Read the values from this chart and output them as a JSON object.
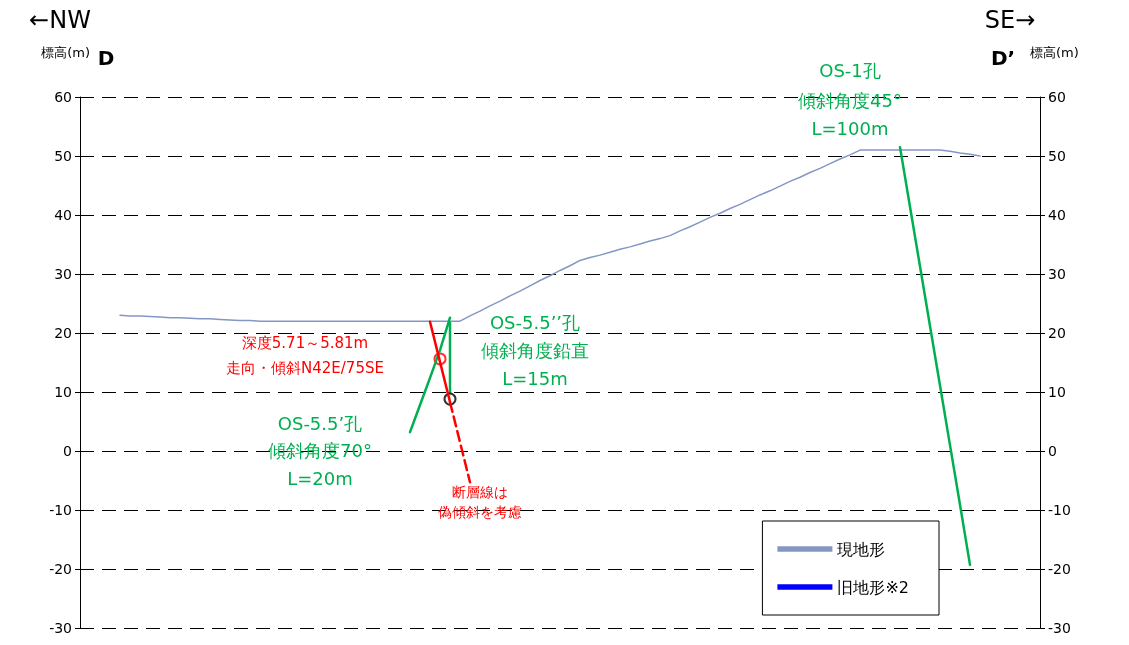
{
  "chart_data": {
    "type": "line",
    "ylabel": "標高(m)",
    "y2label": "標高(m)",
    "annotations": [
      "←NW",
      "D",
      "SE→",
      "D’",
      "OS-1孔",
      "傾斜角度45°",
      "L=100m",
      "OS-5.5’’孔",
      "傾斜角度鉛直",
      "L=15m",
      "OS-5.5’孔",
      "傾斜角度70°",
      "L=20m",
      "深度5.71～5.81m",
      "走向・傾斜N42E/75SE",
      "断層線は",
      "偽傾斜を考慮"
    ],
    "categories": [
      null,
      null,
      null,
      null,
      null,
      null,
      null,
      null,
      null,
      null,
      null,
      null,
      null,
      null,
      null,
      null,
      null,
      null,
      null,
      null,
      null,
      null,
      null,
      null,
      null,
      null,
      null,
      null,
      null,
      null,
      null,
      null,
      null,
      null,
      null,
      null,
      null,
      null,
      null,
      null,
      null,
      null,
      null,
      null,
      null,
      null,
      null,
      null,
      null,
      null,
      null,
      null,
      null,
      null,
      null,
      null,
      null,
      null,
      null,
      null,
      null,
      null,
      null,
      null,
      null,
      null,
      null,
      null,
      null,
      null,
      null,
      null,
      null,
      null,
      null,
      null,
      null,
      null,
      null,
      null,
      null,
      null,
      null,
      null,
      null,
      null,
      null,
      null,
      null,
      null,
      null,
      null,
      null,
      null,
      null,
      null,
      null
    ],
    "ylim": [
      -30,
      60
    ],
    "yticks": [
      -30,
      -20,
      -10,
      0,
      10,
      20,
      30,
      40,
      50,
      60
    ],
    "y2lim": [
      -30,
      60
    ],
    "y2ticks": [
      -30,
      -20,
      -10,
      0,
      10,
      20,
      30,
      40,
      50,
      60
    ],
    "tick_labels": "y",
    "grid": "y",
    "legend": "bottom right",
    "marker": "none",
    "series": [
      {
        "name": "現地形",
        "color": "#8497c4",
        "values": [
          null,
          null,
          null,
          null,
          23,
          22.9,
          22.9,
          22.8,
          22.7,
          22.6,
          22.6,
          22.5,
          22.4,
          22.4,
          22.3,
          22.2,
          22.1,
          22.1,
          22,
          22,
          22,
          22,
          22,
          22,
          22,
          22,
          22,
          22,
          22,
          22,
          22,
          22,
          22,
          22,
          22,
          22,
          22,
          22,
          22,
          22.9,
          23.7,
          24.6,
          25.4,
          26.3,
          27.1,
          28.0,
          28.9,
          29.7,
          30.6,
          31.4,
          32.3,
          32.8,
          33.2,
          33.7,
          34.2,
          34.6,
          35.1,
          35.6,
          36.0,
          36.5,
          37.3,
          38.0,
          38.8,
          39.6,
          40.3,
          41.1,
          41.8,
          42.6,
          43.4,
          44.1,
          44.9,
          45.7,
          46.4,
          47.2,
          47.9,
          48.7,
          49.5,
          50.2,
          51,
          51,
          51,
          51,
          51,
          51,
          51,
          51,
          51,
          50.8,
          50.5,
          50.3,
          50,
          null,
          null,
          null,
          null,
          null,
          null
        ]
      },
      {
        "name": "旧地形※2",
        "color": "#0000ff",
        "values": [
          null,
          null,
          null,
          null,
          null,
          null,
          null,
          null,
          null,
          null,
          null,
          null,
          null,
          null,
          null,
          null,
          null,
          null,
          null,
          null,
          null,
          null,
          null,
          null,
          null,
          null,
          null,
          null,
          null,
          null,
          null,
          null,
          null,
          null,
          null,
          null,
          null,
          null,
          null,
          null,
          null,
          null,
          null,
          null,
          null,
          null,
          null,
          null,
          null,
          null,
          null,
          null,
          null,
          null,
          null,
          null,
          null,
          null,
          null,
          null,
          null,
          null,
          null,
          null,
          null,
          null,
          null,
          null,
          null,
          null,
          null,
          null,
          null,
          null,
          null,
          null,
          null,
          null,
          null,
          null,
          null,
          null,
          null,
          null,
          null,
          null,
          null,
          null,
          null,
          null,
          null,
          null,
          null,
          null,
          null,
          null,
          null
        ]
      },
      {
        "color": "#00b050",
        "values": [
          null,
          null,
          null,
          null,
          null,
          null,
          null,
          null,
          null,
          null,
          null,
          null,
          null,
          null,
          null,
          null,
          null,
          null,
          null,
          null,
          null,
          null,
          null,
          null,
          null,
          null,
          null,
          null,
          null,
          null,
          null,
          null,
          null,
          null,
          null,
          null,
          null,
          null,
          null,
          null,
          null,
          null,
          null,
          null,
          null,
          null,
          null,
          null,
          null,
          null,
          null,
          null,
          null,
          null,
          null,
          null,
          null,
          null,
          null,
          null,
          null,
          null,
          null,
          null,
          null,
          null,
          null,
          null,
          null,
          null,
          null,
          null,
          null,
          null,
          null,
          null,
          null,
          null,
          null,
          null,
          null,
          null,
          51.5,
          41.4,
          31.3,
          21.2,
          11.1,
          1.0,
          -9.1,
          -19.3,
          null,
          null,
          null,
          null,
          null,
          null,
          null
        ]
      },
      {
        "type": "bar",
        "color": "#00b050",
        "values": [
          null,
          null,
          null,
          null,
          null,
          null,
          null,
          null,
          null,
          null,
          null,
          null,
          null,
          null,
          null,
          null,
          null,
          null,
          null,
          null,
          null,
          null,
          null,
          null,
          null,
          null,
          null,
          null,
          null,
          null,
          null,
          null,
          null,
          null,
          null,
          null,
          null,
          13.4,
          null,
          null,
          null,
          null,
          null,
          null,
          null,
          null,
          null,
          null,
          null,
          null,
          null,
          null,
          null,
          null,
          null,
          null,
          null,
          null,
          null,
          null,
          null,
          null,
          null,
          null,
          null,
          null,
          null,
          null,
          null,
          null,
          null,
          null,
          null,
          null,
          null,
          null,
          null,
          null,
          null,
          null,
          null,
          null,
          null,
          null,
          null,
          null,
          null,
          null,
          null,
          null,
          null,
          null,
          null,
          null,
          null,
          null,
          null
        ],
        "base": [
          null,
          null,
          null,
          null,
          null,
          null,
          null,
          null,
          null,
          null,
          null,
          null,
          null,
          null,
          null,
          null,
          null,
          null,
          null,
          null,
          null,
          null,
          null,
          null,
          null,
          null,
          null,
          null,
          null,
          null,
          null,
          null,
          null,
          null,
          null,
          null,
          null,
          8.6,
          null,
          null,
          null,
          null,
          null,
          null,
          null,
          null,
          null,
          null,
          null,
          null,
          null,
          null,
          null,
          null,
          null,
          null,
          null,
          null,
          null,
          null,
          null,
          null,
          null,
          null,
          null,
          null,
          null,
          null,
          null,
          null,
          null,
          null,
          null,
          null,
          null,
          null,
          null,
          null,
          null,
          null,
          null,
          null,
          null,
          null,
          null,
          null,
          null,
          null,
          null,
          null,
          null,
          null,
          null,
          null,
          null,
          null,
          null
        ]
      },
      {
        "color": "#00b050",
        "values": [
          null,
          null,
          null,
          null,
          null,
          null,
          null,
          null,
          null,
          null,
          null,
          null,
          null,
          null,
          null,
          null,
          null,
          null,
          null,
          null,
          null,
          null,
          null,
          null,
          null,
          null,
          null,
          null,
          null,
          null,
          null,
          null,
          null,
          3.2,
          7.8,
          12.4,
          17.1,
          22.6,
          null,
          null,
          null,
          null,
          null,
          null,
          null,
          null,
          null,
          null,
          null,
          null,
          null,
          null,
          null,
          null,
          null,
          null,
          null,
          null,
          null,
          null,
          null,
          null,
          null,
          null,
          null,
          null,
          null,
          null,
          null,
          null,
          null,
          null,
          null,
          null,
          null,
          null,
          null,
          null,
          null,
          null,
          null,
          null,
          null,
          null,
          null,
          null,
          null,
          null,
          null,
          null,
          null,
          null,
          null,
          null,
          null,
          null,
          null
        ]
      },
      {
        "color": "#ff0000",
        "values": [
          null,
          null,
          null,
          null,
          null,
          null,
          null,
          null,
          null,
          null,
          null,
          null,
          null,
          null,
          null,
          null,
          null,
          null,
          null,
          null,
          null,
          null,
          null,
          null,
          null,
          null,
          null,
          null,
          null,
          null,
          null,
          null,
          null,
          null,
          null,
          21.9,
          15.1,
          8.3,
          null,
          null,
          null,
          null,
          null,
          null,
          null,
          null,
          null,
          null,
          null,
          null,
          null,
          null,
          null,
          null,
          null,
          null,
          null,
          null,
          null,
          null,
          null,
          null,
          null,
          null,
          null,
          null,
          null,
          null,
          null,
          null,
          null,
          null,
          null,
          null,
          null,
          null,
          null,
          null,
          null,
          null,
          null,
          null,
          null,
          null,
          null,
          null,
          null,
          null,
          null,
          null,
          null,
          null,
          null,
          null,
          null,
          null,
          null
        ]
      },
      {
        "color": "#ff0000",
        "line_style": "dashed",
        "values": [
          null,
          null,
          null,
          null,
          null,
          null,
          null,
          null,
          null,
          null,
          null,
          null,
          null,
          null,
          null,
          null,
          null,
          null,
          null,
          null,
          null,
          null,
          null,
          null,
          null,
          null,
          null,
          null,
          null,
          null,
          null,
          null,
          null,
          null,
          null,
          null,
          null,
          8.3,
          1.5,
          -5.3,
          null,
          null,
          null,
          null,
          null,
          null,
          null,
          null,
          null,
          null,
          null,
          null,
          null,
          null,
          null,
          null,
          null,
          null,
          null,
          null,
          null,
          null,
          null,
          null,
          null,
          null,
          null,
          null,
          null,
          null,
          null,
          null,
          null,
          null,
          null,
          null,
          null,
          null,
          null,
          null,
          null,
          null,
          null,
          null,
          null,
          null,
          null,
          null,
          null,
          null,
          null,
          null,
          null,
          null,
          null,
          null,
          null
        ]
      },
      {
        "type": "scatter",
        "color": "#ff0000",
        "marker": "circle",
        "values": [
          null,
          null,
          null,
          null,
          null,
          null,
          null,
          null,
          null,
          null,
          null,
          null,
          null,
          null,
          null,
          null,
          null,
          null,
          null,
          null,
          null,
          null,
          null,
          null,
          null,
          null,
          null,
          null,
          null,
          null,
          null,
          null,
          null,
          null,
          null,
          null,
          15.6,
          null,
          null,
          null,
          null,
          null,
          null,
          null,
          null,
          null,
          null,
          null,
          null,
          null,
          null,
          null,
          null,
          null,
          null,
          null,
          null,
          null,
          null,
          null,
          null,
          null,
          null,
          null,
          null,
          null,
          null,
          null,
          null,
          null,
          null,
          null,
          null,
          null,
          null,
          null,
          null,
          null,
          null,
          null,
          null,
          null,
          null,
          null,
          null,
          null,
          null,
          null,
          null,
          null,
          null,
          null,
          null,
          null,
          null,
          null,
          null
        ]
      },
      {
        "type": "scatter",
        "color": "#000000",
        "marker": "circle",
        "values": [
          null,
          null,
          null,
          null,
          null,
          null,
          null,
          null,
          null,
          null,
          null,
          null,
          null,
          null,
          null,
          null,
          null,
          null,
          null,
          null,
          null,
          null,
          null,
          null,
          null,
          null,
          null,
          null,
          null,
          null,
          null,
          null,
          null,
          null,
          null,
          null,
          null,
          8.8,
          null,
          null,
          null,
          null,
          null,
          null,
          null,
          null,
          null,
          null,
          null,
          null,
          null,
          null,
          null,
          null,
          null,
          null,
          null,
          null,
          null,
          null,
          null,
          null,
          null,
          null,
          null,
          null,
          null,
          null,
          null,
          null,
          null,
          null,
          null,
          null,
          null,
          null,
          null,
          null,
          null,
          null,
          null,
          null,
          null,
          null,
          null,
          null,
          null,
          null,
          null,
          null,
          null,
          null,
          null,
          null,
          null,
          null,
          null
        ]
      }
    ]
  }
}
